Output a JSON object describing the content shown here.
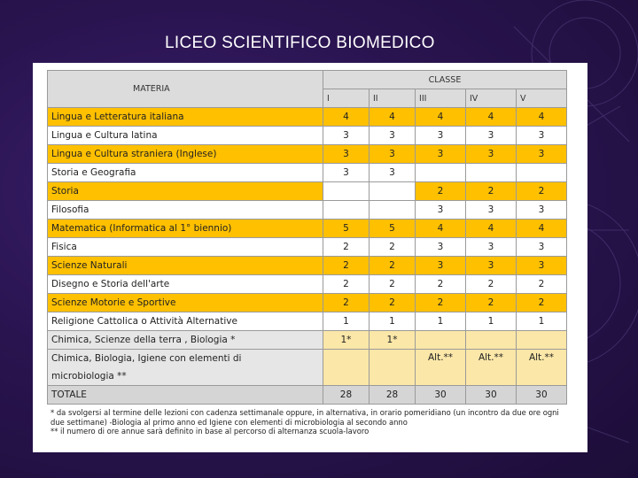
{
  "title": "LICEO SCIENTIFICO BIOMEDICO",
  "table": {
    "classe_label": "CLASSE",
    "materia_label": "MATERIA",
    "years": [
      "I",
      "II",
      "III",
      "IV",
      "V"
    ],
    "rows": [
      {
        "subject": "Lingua e Letteratura italiana",
        "values": [
          "4",
          "4",
          "4",
          "4",
          "4"
        ],
        "style": "orange"
      },
      {
        "subject": "Lingua e Cultura latina",
        "values": [
          "3",
          "3",
          "3",
          "3",
          "3"
        ],
        "style": "white"
      },
      {
        "subject": "Lingua e Cultura straniera (Inglese)",
        "values": [
          "3",
          "3",
          "3",
          "3",
          "3"
        ],
        "style": "orange"
      },
      {
        "subject": "Storia e Geografia",
        "values": [
          "3",
          "3",
          "",
          "",
          ""
        ],
        "style": "white"
      },
      {
        "subject": "Storia",
        "values": [
          "",
          "",
          "2",
          "2",
          "2"
        ],
        "style": "orange"
      },
      {
        "subject": "Filosofia",
        "values": [
          "",
          "",
          "3",
          "3",
          "3"
        ],
        "style": "white"
      },
      {
        "subject": "Matematica (Informatica al 1° biennio)",
        "values": [
          "5",
          "5",
          "4",
          "4",
          "4"
        ],
        "style": "orange"
      },
      {
        "subject": "Fisica",
        "values": [
          "2",
          "2",
          "3",
          "3",
          "3"
        ],
        "style": "white"
      },
      {
        "subject": "Scienze Naturali",
        "values": [
          "2",
          "2",
          "3",
          "3",
          "3"
        ],
        "style": "orange"
      },
      {
        "subject": "Disegno e Storia dell'arte",
        "values": [
          "2",
          "2",
          "2",
          "2",
          "2"
        ],
        "style": "white"
      },
      {
        "subject": "Scienze Motorie e Sportive",
        "values": [
          "2",
          "2",
          "2",
          "2",
          "2"
        ],
        "style": "orange"
      },
      {
        "subject": "Religione Cattolica o Attività Alternative",
        "values": [
          "1",
          "1",
          "1",
          "1",
          "1"
        ],
        "style": "white"
      },
      {
        "subject": "Chimica, Scienze della terra , Biologia *",
        "values": [
          "1*",
          "1*",
          "",
          "",
          ""
        ],
        "style": "dotted"
      }
    ],
    "special_row": {
      "subject_line1": "Chimica, Biologia, Igiene con elementi di",
      "subject_line2": "microbiologia **",
      "values": [
        "",
        "",
        "Alt.**",
        "Alt.**",
        "Alt.**"
      ]
    },
    "total": {
      "label": "TOTALE",
      "values": [
        "28",
        "28",
        "30",
        "30",
        "30"
      ]
    }
  },
  "notes": {
    "note1": "* da svolgersi al termine delle lezioni con cadenza settimanale oppure, in alternativa, in orario pomeridiano (un incontro da due ore ogni due settimane) -Biologia al primo anno ed Igiene con elementi di microbiologia al secondo anno",
    "note2": "** il numero di ore annue sarà definito in base al percorso di alternanza scuola-lavoro"
  },
  "colors": {
    "background": "#2a1450",
    "highlight": "#ffc000",
    "header": "#dcdcdc"
  }
}
